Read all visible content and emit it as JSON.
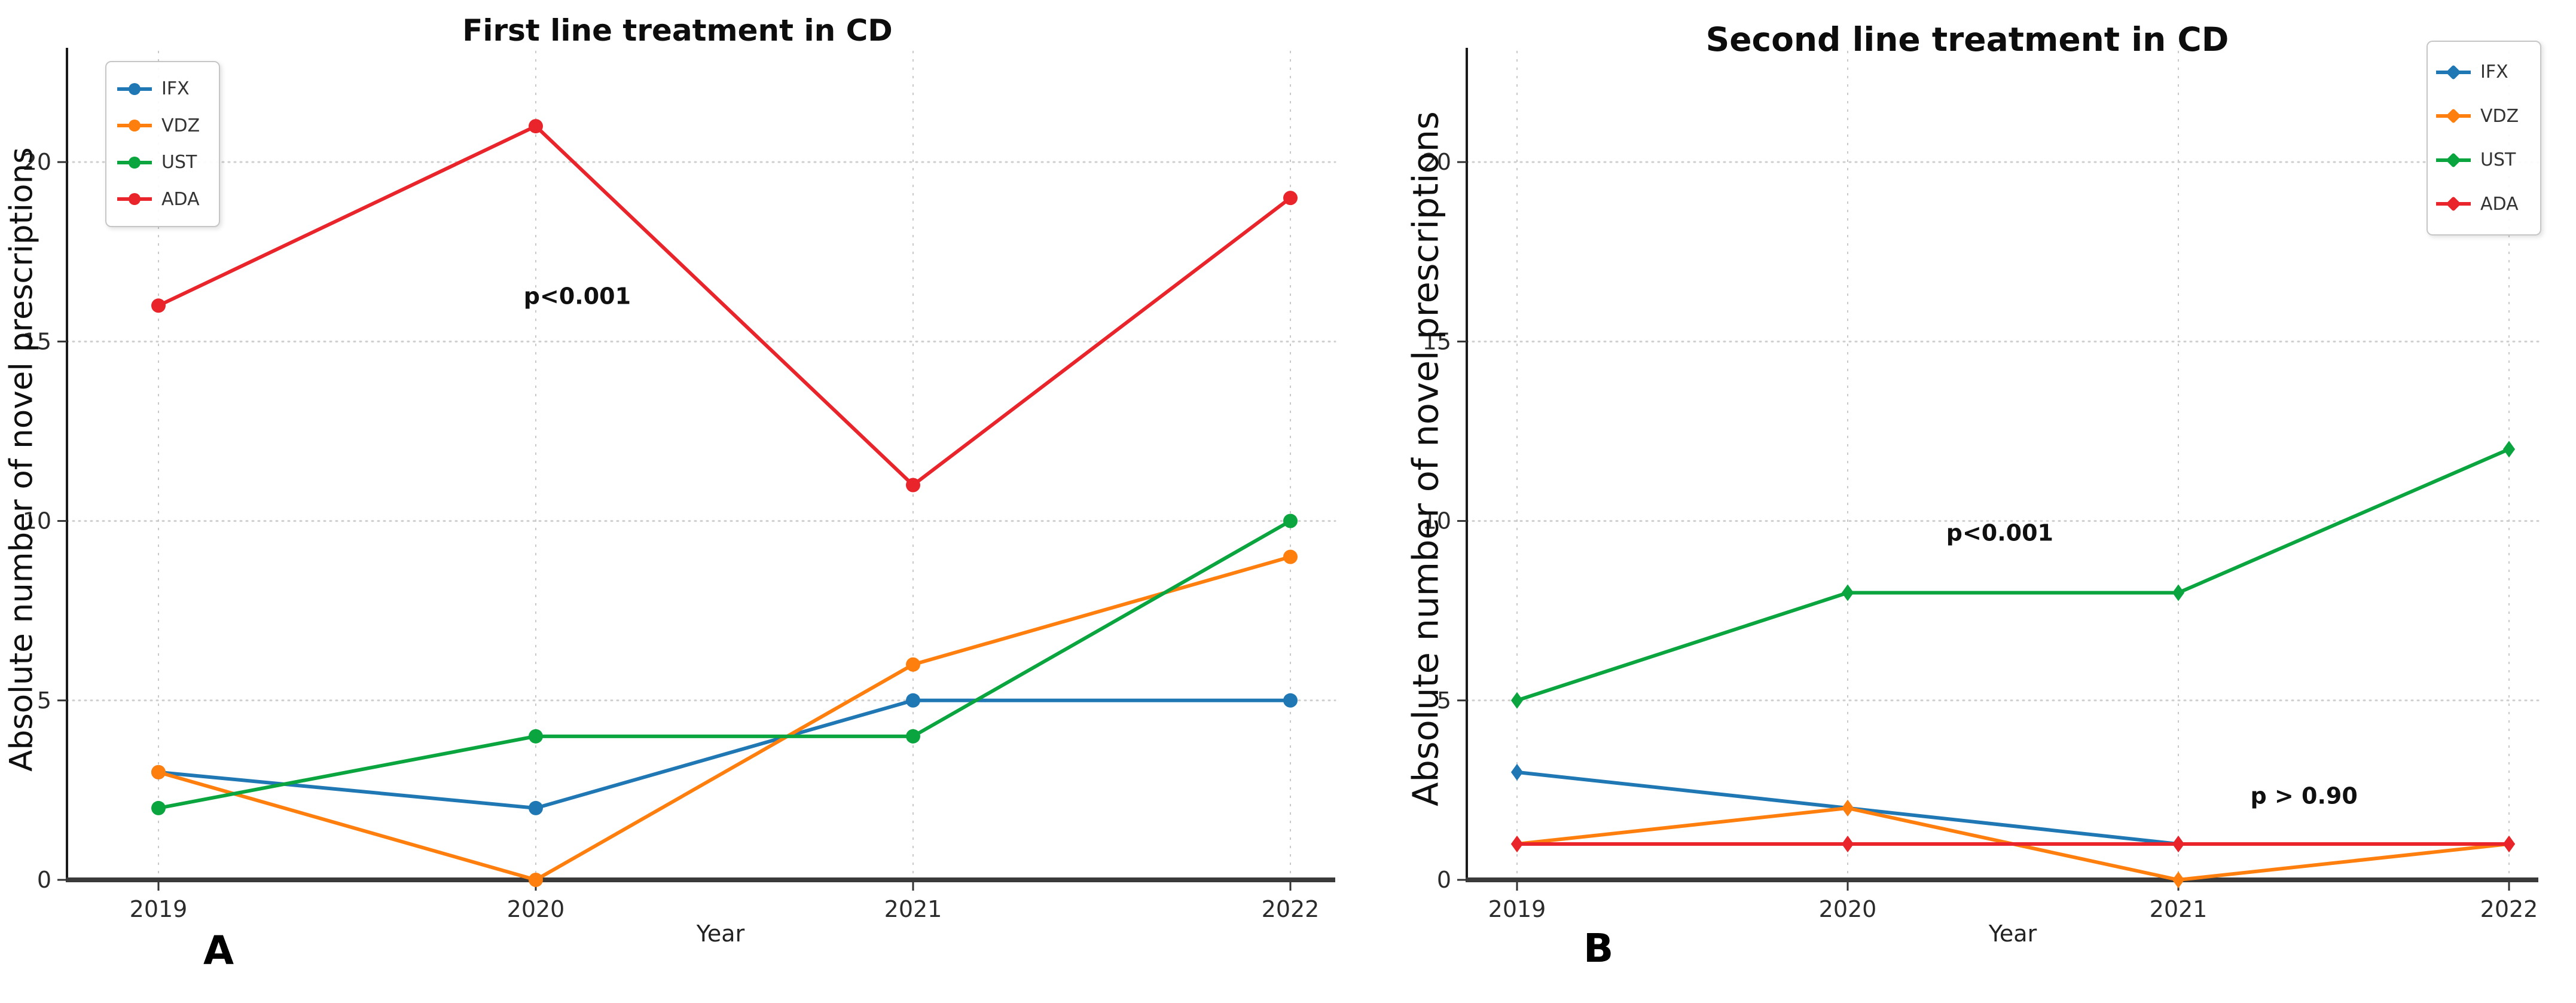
{
  "figure": {
    "background": "#ffffff",
    "grid_color_vertical": "#c9c9c9",
    "grid_color_horizontal": "#cfcfcf",
    "axis_color": "#1a1a1a",
    "baseline_color": "#3a3a3a",
    "tick_label_color": "#2b2b2b"
  },
  "charts": [
    {
      "panel_label": "A",
      "title": "First line treatment in CD",
      "xlabel": "Year",
      "ylabel": "Absolute number of novel prescriptions",
      "chart_data": {
        "type": "line",
        "categories": [
          2019,
          2020,
          2021,
          2022
        ],
        "x_tick_labels": [
          "2019",
          "2020",
          "2021",
          "2022"
        ],
        "y_ticks": [
          0,
          5,
          10,
          15,
          20
        ],
        "ylim": [
          0,
          23.1
        ],
        "grid": true,
        "legend_position": "inside-top-left",
        "marker_style": "circle",
        "series": [
          {
            "name": "IFX",
            "color": "#1f77b4",
            "values": [
              3,
              2,
              5,
              5
            ]
          },
          {
            "name": "VDZ",
            "color": "#ff7f0e",
            "values": [
              3,
              0,
              6,
              9
            ]
          },
          {
            "name": "UST",
            "color": "#0aa53f",
            "values": [
              2,
              4,
              4,
              10
            ]
          },
          {
            "name": "ADA",
            "color": "#e9242a",
            "values": [
              16,
              21,
              11,
              19
            ]
          }
        ],
        "annotations": [
          {
            "text": "p<0.001",
            "x": 2020.11,
            "y": 16.05
          }
        ]
      }
    },
    {
      "panel_label": "B",
      "title": "Second line treatment in CD",
      "xlabel": "Year",
      "ylabel": "Absolute number of novel prescriptions",
      "chart_data": {
        "type": "line",
        "categories": [
          2019,
          2020,
          2021,
          2022
        ],
        "x_tick_labels": [
          "2019",
          "2020",
          "2021",
          "2022"
        ],
        "y_ticks": [
          0,
          5,
          10,
          15,
          20
        ],
        "ylim": [
          0,
          23.1
        ],
        "grid": true,
        "legend_position": "outside-top-right",
        "marker_style": "diamond",
        "series": [
          {
            "name": "IFX",
            "color": "#1f77b4",
            "values": [
              3,
              2,
              1,
              1
            ]
          },
          {
            "name": "VDZ",
            "color": "#ff7f0e",
            "values": [
              1,
              2,
              0,
              1
            ]
          },
          {
            "name": "UST",
            "color": "#0aa53f",
            "values": [
              5,
              8,
              8,
              12
            ]
          },
          {
            "name": "ADA",
            "color": "#e9242a",
            "values": [
              1,
              1,
              1,
              1
            ]
          }
        ],
        "annotations": [
          {
            "text": "p<0.001",
            "x": 2020.46,
            "y": 9.45
          },
          {
            "text": "p > 0.90",
            "x": 2021.38,
            "y": 2.12
          }
        ]
      }
    }
  ]
}
